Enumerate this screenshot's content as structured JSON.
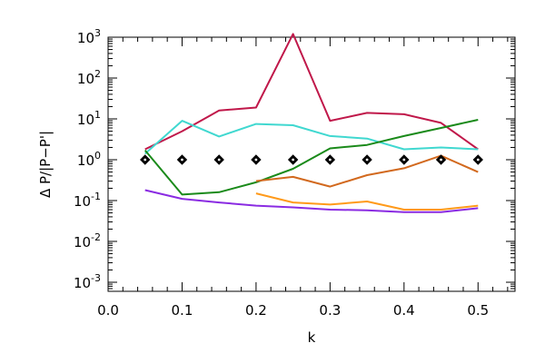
{
  "chart_data": {
    "type": "line",
    "title": "",
    "xlabel": "k",
    "ylabel": "Δ P/|P−P'|",
    "xlim": [
      0.0,
      0.55
    ],
    "ylim": [
      0.0006,
      1000
    ],
    "yscale": "log",
    "grid": false,
    "legend": "none",
    "x_ticks": [
      {
        "v": 0.0,
        "label": "0.0"
      },
      {
        "v": 0.1,
        "label": "0.1"
      },
      {
        "v": 0.2,
        "label": "0.2"
      },
      {
        "v": 0.3,
        "label": "0.3"
      },
      {
        "v": 0.4,
        "label": "0.4"
      },
      {
        "v": 0.5,
        "label": "0.5"
      }
    ],
    "y_ticks": [
      {
        "v": 0.001,
        "base": "10",
        "exp": "-3"
      },
      {
        "v": 0.01,
        "base": "10",
        "exp": "-2"
      },
      {
        "v": 0.1,
        "base": "10",
        "exp": "-1"
      },
      {
        "v": 1,
        "base": "10",
        "exp": "0"
      },
      {
        "v": 10,
        "base": "10",
        "exp": "1"
      },
      {
        "v": 100,
        "base": "10",
        "exp": "2"
      },
      {
        "v": 1000,
        "base": "10",
        "exp": "3"
      }
    ],
    "series": [
      {
        "color": "#c0184a",
        "kind": "line",
        "x": [
          0.05,
          0.1,
          0.15,
          0.2,
          0.25,
          0.3,
          0.35,
          0.4,
          0.45,
          0.5
        ],
        "y": [
          1.8,
          5.0,
          16,
          19,
          1200,
          9,
          14,
          13,
          8,
          1.8
        ]
      },
      {
        "color": "#40d8d0",
        "kind": "line",
        "x": [
          0.05,
          0.1,
          0.15,
          0.2,
          0.25,
          0.3,
          0.35,
          0.4,
          0.45,
          0.5
        ],
        "y": [
          1.4,
          9,
          3.7,
          7.5,
          7,
          3.8,
          3.3,
          1.8,
          2.0,
          1.8
        ]
      },
      {
        "color": "#1a8a1a",
        "kind": "line",
        "x": [
          0.05,
          0.1,
          0.15,
          0.2,
          0.25,
          0.3,
          0.35,
          0.4,
          0.45,
          0.5
        ],
        "y": [
          1.7,
          0.14,
          0.16,
          0.28,
          0.6,
          1.9,
          2.3,
          3.8,
          6.0,
          9.5
        ]
      },
      {
        "color": "#d2691e",
        "kind": "line",
        "x": [
          0.2,
          0.25,
          0.3,
          0.35,
          0.4,
          0.45,
          0.5
        ],
        "y": [
          0.3,
          0.38,
          0.22,
          0.42,
          0.62,
          1.25,
          0.5
        ]
      },
      {
        "color": "#ff9a1a",
        "kind": "line",
        "x": [
          0.2,
          0.25,
          0.3,
          0.35,
          0.4,
          0.45,
          0.5
        ],
        "y": [
          0.15,
          0.09,
          0.08,
          0.095,
          0.06,
          0.06,
          0.075
        ]
      },
      {
        "color": "#8a2be2",
        "kind": "line",
        "x": [
          0.05,
          0.1,
          0.15,
          0.2,
          0.25,
          0.3,
          0.35,
          0.4,
          0.45,
          0.5
        ],
        "y": [
          0.18,
          0.11,
          0.09,
          0.075,
          0.068,
          0.06,
          0.058,
          0.052,
          0.052,
          0.065
        ]
      },
      {
        "color": "#000000",
        "kind": "diamond",
        "x": [
          0.05,
          0.1,
          0.15,
          0.2,
          0.25,
          0.3,
          0.35,
          0.4,
          0.45,
          0.5
        ],
        "y": [
          1,
          1,
          1,
          1,
          1,
          1,
          1,
          1,
          1,
          1
        ]
      }
    ]
  }
}
